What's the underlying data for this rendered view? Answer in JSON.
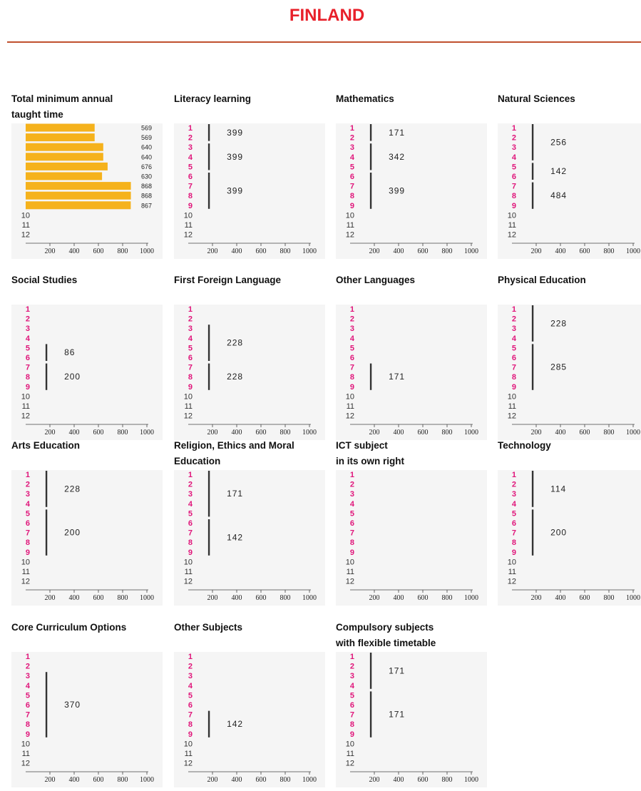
{
  "page": {
    "title": "FINLAND"
  },
  "colors": {
    "title": "#e8202a",
    "rule": "#c0502e",
    "grade_labels": "#e0157a",
    "total_bar": "#f5b21c",
    "bracket": "#333333",
    "plot_background": "#f5f5f5"
  },
  "chart_data": [
    {
      "type": "bar",
      "orientation": "horizontal",
      "title": [
        "Total minimum annual",
        "taught time"
      ],
      "categories": [
        "1",
        "2",
        "3",
        "4",
        "5",
        "6",
        "7",
        "8",
        "9",
        "10",
        "11",
        "12"
      ],
      "values": [
        569,
        569,
        640,
        640,
        676,
        630,
        868,
        868,
        867,
        null,
        null,
        null
      ],
      "value_labels": [
        "569",
        "569",
        "640",
        "640",
        "676",
        "630",
        "868",
        "868",
        "867",
        "",
        "",
        ""
      ],
      "xticks": [
        200,
        400,
        600,
        800,
        1000
      ],
      "xlim": [
        0,
        1000
      ]
    },
    {
      "type": "bar",
      "title": [
        "Literacy learning"
      ],
      "categories": [
        "1",
        "2",
        "3",
        "4",
        "5",
        "6",
        "7",
        "8",
        "9",
        "10",
        "11",
        "12"
      ],
      "xticks": [
        200,
        400,
        600,
        800,
        1000
      ],
      "xlim": [
        0,
        1000
      ],
      "series": [
        {
          "grades": [
            1,
            2
          ],
          "value": 399
        },
        {
          "grades": [
            3,
            5
          ],
          "value": 399
        },
        {
          "grades": [
            6,
            9
          ],
          "value": 399
        }
      ]
    },
    {
      "type": "bar",
      "title": [
        "Mathematics"
      ],
      "categories": [
        "1",
        "2",
        "3",
        "4",
        "5",
        "6",
        "7",
        "8",
        "9",
        "10",
        "11",
        "12"
      ],
      "xticks": [
        200,
        400,
        600,
        800,
        1000
      ],
      "xlim": [
        0,
        1000
      ],
      "series": [
        {
          "grades": [
            1,
            2
          ],
          "value": 171
        },
        {
          "grades": [
            3,
            5
          ],
          "value": 342
        },
        {
          "grades": [
            6,
            9
          ],
          "value": 399
        }
      ]
    },
    {
      "type": "bar",
      "title": [
        "Natural Sciences"
      ],
      "categories": [
        "1",
        "2",
        "3",
        "4",
        "5",
        "6",
        "7",
        "8",
        "9",
        "10",
        "11",
        "12"
      ],
      "xticks": [
        200,
        400,
        600,
        800,
        1000
      ],
      "xlim": [
        0,
        1000
      ],
      "series": [
        {
          "grades": [
            1,
            4
          ],
          "value": 256
        },
        {
          "grades": [
            5,
            6
          ],
          "value": 142
        },
        {
          "grades": [
            7,
            9
          ],
          "value": 484
        }
      ]
    },
    {
      "type": "bar",
      "title": [
        "Social Studies"
      ],
      "categories": [
        "1",
        "2",
        "3",
        "4",
        "5",
        "6",
        "7",
        "8",
        "9",
        "10",
        "11",
        "12"
      ],
      "xticks": [
        200,
        400,
        600,
        800,
        1000
      ],
      "xlim": [
        0,
        1000
      ],
      "series": [
        {
          "grades": [
            5,
            6
          ],
          "value": 86
        },
        {
          "grades": [
            7,
            9
          ],
          "value": 200
        }
      ]
    },
    {
      "type": "bar",
      "title": [
        "First Foreign Language"
      ],
      "categories": [
        "1",
        "2",
        "3",
        "4",
        "5",
        "6",
        "7",
        "8",
        "9",
        "10",
        "11",
        "12"
      ],
      "xticks": [
        200,
        400,
        600,
        800,
        1000
      ],
      "xlim": [
        0,
        1000
      ],
      "series": [
        {
          "grades": [
            3,
            6
          ],
          "value": 228
        },
        {
          "grades": [
            7,
            9
          ],
          "value": 228
        }
      ]
    },
    {
      "type": "bar",
      "title": [
        "Other Languages"
      ],
      "categories": [
        "1",
        "2",
        "3",
        "4",
        "5",
        "6",
        "7",
        "8",
        "9",
        "10",
        "11",
        "12"
      ],
      "xticks": [
        200,
        400,
        600,
        800,
        1000
      ],
      "xlim": [
        0,
        1000
      ],
      "series": [
        {
          "grades": [
            7,
            9
          ],
          "value": 171
        }
      ]
    },
    {
      "type": "bar",
      "title": [
        "Physical Education"
      ],
      "categories": [
        "1",
        "2",
        "3",
        "4",
        "5",
        "6",
        "7",
        "8",
        "9",
        "10",
        "11",
        "12"
      ],
      "xticks": [
        200,
        400,
        600,
        800,
        1000
      ],
      "xlim": [
        0,
        1000
      ],
      "series": [
        {
          "grades": [
            1,
            4
          ],
          "value": 228
        },
        {
          "grades": [
            5,
            9
          ],
          "value": 285
        }
      ]
    },
    {
      "type": "bar",
      "title": [
        "Arts Education"
      ],
      "categories": [
        "1",
        "2",
        "3",
        "4",
        "5",
        "6",
        "7",
        "8",
        "9",
        "10",
        "11",
        "12"
      ],
      "xticks": [
        200,
        400,
        600,
        800,
        1000
      ],
      "xlim": [
        0,
        1000
      ],
      "series": [
        {
          "grades": [
            1,
            4
          ],
          "value": 228
        },
        {
          "grades": [
            5,
            9
          ],
          "value": 200
        }
      ]
    },
    {
      "type": "bar",
      "title": [
        "Religion, Ethics and Moral",
        "Education"
      ],
      "categories": [
        "1",
        "2",
        "3",
        "4",
        "5",
        "6",
        "7",
        "8",
        "9",
        "10",
        "11",
        "12"
      ],
      "xticks": [
        200,
        400,
        600,
        800,
        1000
      ],
      "xlim": [
        0,
        1000
      ],
      "series": [
        {
          "grades": [
            1,
            5
          ],
          "value": 171
        },
        {
          "grades": [
            6,
            9
          ],
          "value": 142
        }
      ]
    },
    {
      "type": "bar",
      "title": [
        "ICT subject",
        "in its own right"
      ],
      "categories": [
        "1",
        "2",
        "3",
        "4",
        "5",
        "6",
        "7",
        "8",
        "9",
        "10",
        "11",
        "12"
      ],
      "xticks": [
        200,
        400,
        600,
        800,
        1000
      ],
      "xlim": [
        0,
        1000
      ],
      "series": []
    },
    {
      "type": "bar",
      "title": [
        "Technology"
      ],
      "categories": [
        "1",
        "2",
        "3",
        "4",
        "5",
        "6",
        "7",
        "8",
        "9",
        "10",
        "11",
        "12"
      ],
      "xticks": [
        200,
        400,
        600,
        800,
        1000
      ],
      "xlim": [
        0,
        1000
      ],
      "series": [
        {
          "grades": [
            1,
            4
          ],
          "value": 114
        },
        {
          "grades": [
            5,
            9
          ],
          "value": 200
        }
      ]
    },
    {
      "type": "bar",
      "title": [
        "Core Curriculum Options"
      ],
      "categories": [
        "1",
        "2",
        "3",
        "4",
        "5",
        "6",
        "7",
        "8",
        "9",
        "10",
        "11",
        "12"
      ],
      "xticks": [
        200,
        400,
        600,
        800,
        1000
      ],
      "xlim": [
        0,
        1000
      ],
      "series": [
        {
          "grades": [
            3,
            9
          ],
          "value": 370
        }
      ]
    },
    {
      "type": "bar",
      "title": [
        "Other Subjects"
      ],
      "categories": [
        "1",
        "2",
        "3",
        "4",
        "5",
        "6",
        "7",
        "8",
        "9",
        "10",
        "11",
        "12"
      ],
      "xticks": [
        200,
        400,
        600,
        800,
        1000
      ],
      "xlim": [
        0,
        1000
      ],
      "series": [
        {
          "grades": [
            7,
            9
          ],
          "value": 142
        }
      ]
    },
    {
      "type": "bar",
      "title": [
        "Compulsory subjects",
        "with flexible timetable"
      ],
      "categories": [
        "1",
        "2",
        "3",
        "4",
        "5",
        "6",
        "7",
        "8",
        "9",
        "10",
        "11",
        "12"
      ],
      "xticks": [
        200,
        400,
        600,
        800,
        1000
      ],
      "xlim": [
        0,
        1000
      ],
      "series": [
        {
          "grades": [
            1,
            4
          ],
          "value": 171
        },
        {
          "grades": [
            5,
            9
          ],
          "value": 171
        }
      ]
    }
  ]
}
